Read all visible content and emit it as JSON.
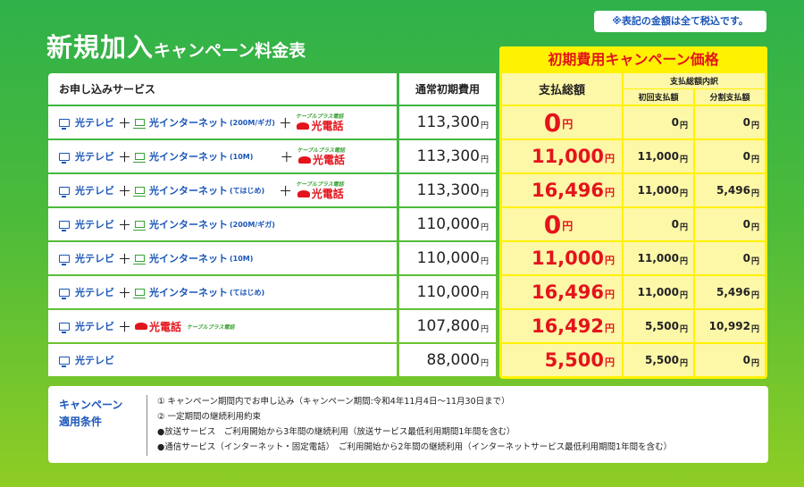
{
  "tax_note": "※表記の金額は全て税込です。",
  "title": {
    "main": "新規加入",
    "sub": "キャンペーン料金表"
  },
  "campaign_banner": "初期費用キャンペーン価格",
  "headers": {
    "service": "お申し込みサービス",
    "normal_fee": "通常初期費用",
    "total": "支払総額",
    "breakdown": "支払総額内訳",
    "initial": "初回支払額",
    "split": "分割支払額"
  },
  "yen": "円",
  "plus": "＋",
  "labels": {
    "tv": "光テレビ",
    "net": "光インターネット",
    "phone": "光電話",
    "phone_brand": "ケーブルプラス電話"
  },
  "rows": [
    {
      "net_speed": "(200M/ギガ)",
      "normal": "113,300",
      "total": "0",
      "initial": "0",
      "split": "0"
    },
    {
      "net_speed": "(10M)",
      "normal": "113,300",
      "total": "11,000",
      "initial": "11,000",
      "split": "0"
    },
    {
      "net_speed": "(てはじめ)",
      "normal": "113,300",
      "total": "16,496",
      "initial": "11,000",
      "split": "5,496"
    },
    {
      "net_speed": "(200M/ギガ)",
      "normal": "110,000",
      "total": "0",
      "initial": "0",
      "split": "0"
    },
    {
      "net_speed": "(10M)",
      "normal": "110,000",
      "total": "11,000",
      "initial": "11,000",
      "split": "0"
    },
    {
      "net_speed": "(てはじめ)",
      "normal": "110,000",
      "total": "16,496",
      "initial": "11,000",
      "split": "5,496"
    },
    {
      "normal": "107,800",
      "total": "16,492",
      "initial": "5,500",
      "split": "10,992"
    },
    {
      "normal": "88,000",
      "total": "5,500",
      "initial": "5,500",
      "split": "0"
    }
  ],
  "conditions": {
    "label_line1": "キャンペーン",
    "label_line2": "適用条件",
    "lines": [
      "① キャンペーン期間内でお申し込み（キャンペーン期間:令和4年11月4日〜11月30日まで）",
      "② 一定期間の継続利用約束",
      "●放送サービス　ご利用開始から3年間の継続利用（放送サービス最低利用期間1年間を含む）",
      "●通信サービス（インターネット・固定電話）　ご利用開始から2年間の継続利用（インターネットサービス最低利用期間1年間を含む）"
    ]
  },
  "colors": {
    "accent_red": "#e4141c",
    "brand_blue": "#1a56b8",
    "highlight_yellow": "#fff200",
    "green": "#3aa235"
  }
}
